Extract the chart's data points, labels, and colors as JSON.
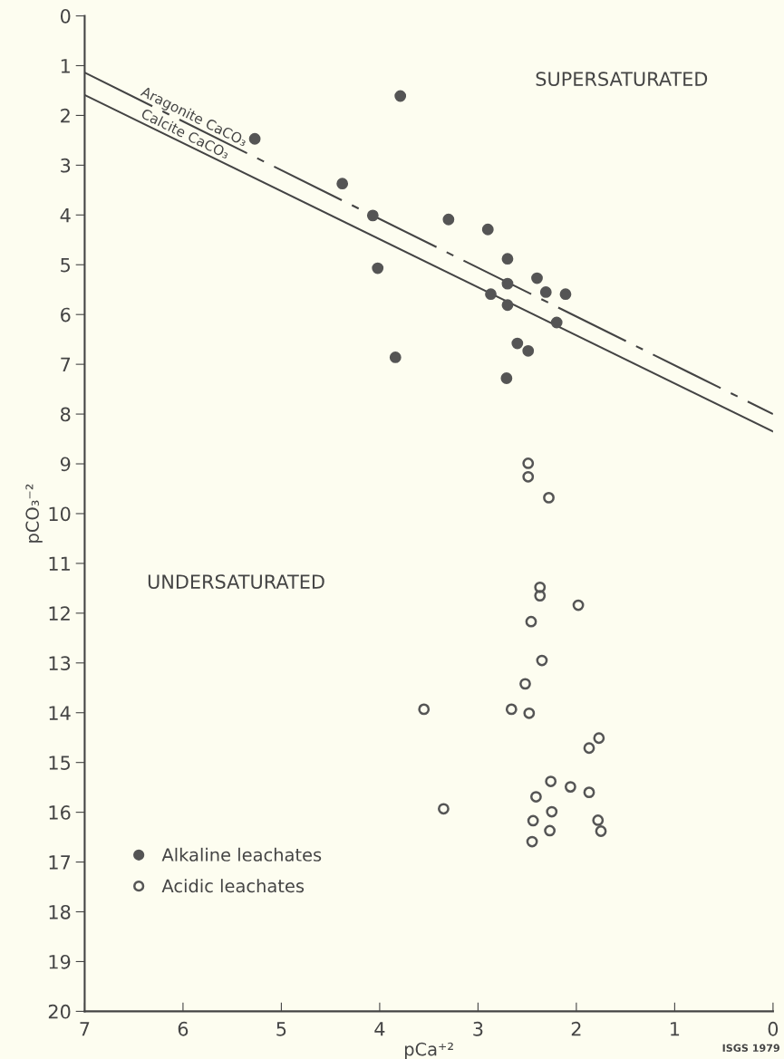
{
  "chart_data": {
    "type": "scatter",
    "xlabel": "pCa⁺²",
    "ylabel": "pCO₃⁻²",
    "xlim": [
      7,
      0
    ],
    "xticks": [
      7,
      6,
      5,
      4,
      3,
      2,
      1,
      0
    ],
    "ylim": [
      20,
      0
    ],
    "yticks": [
      0,
      1,
      2,
      3,
      4,
      5,
      6,
      7,
      8,
      9,
      10,
      11,
      12,
      13,
      14,
      15,
      16,
      17,
      18,
      19,
      20
    ],
    "grid": false,
    "legend": "bottom left",
    "annotations": [
      "SUPERSATURATED",
      "UNDERSATURATED",
      "ISGS 1979"
    ],
    "series": [
      {
        "type": "line",
        "name": "Aragonite CaCO₃",
        "color": "#444444",
        "line_style": "dashed",
        "x": [
          7,
          0
        ],
        "values": [
          1.14,
          8.0
        ]
      },
      {
        "type": "line",
        "name": "Calcite CaCO₃",
        "color": "#444444",
        "line_style": "solid",
        "x": [
          7,
          0
        ],
        "values": [
          1.59,
          8.35
        ]
      },
      {
        "name": "Alkaline leachates",
        "color": "#555555",
        "marker": "circle",
        "x": [
          3.79,
          5.27,
          4.38,
          4.07,
          3.3,
          4.02,
          2.9,
          2.7,
          2.4,
          2.7,
          2.31,
          2.11,
          2.87,
          2.7,
          2.2,
          2.6,
          2.49,
          2.71,
          3.84
        ],
        "values": [
          1.61,
          2.47,
          3.37,
          4.01,
          4.09,
          5.07,
          4.29,
          4.88,
          5.27,
          5.38,
          5.55,
          5.59,
          5.59,
          5.81,
          6.16,
          6.58,
          6.73,
          7.28,
          6.86
        ]
      },
      {
        "name": "Acidic leachates",
        "color": "#555555",
        "marker": "circle",
        "x": [
          2.49,
          2.49,
          2.28,
          2.37,
          2.37,
          1.98,
          2.46,
          2.35,
          2.52,
          3.55,
          2.66,
          2.48,
          1.77,
          1.87,
          2.26,
          2.06,
          1.87,
          2.41,
          3.35,
          2.25,
          2.44,
          1.78,
          2.27,
          1.75,
          2.45
        ],
        "values": [
          8.99,
          9.26,
          9.68,
          11.48,
          11.65,
          11.84,
          12.17,
          12.95,
          13.42,
          13.93,
          13.93,
          14.01,
          14.51,
          14.71,
          15.38,
          15.49,
          15.6,
          15.69,
          15.93,
          15.99,
          16.17,
          16.16,
          16.37,
          16.38,
          16.59
        ]
      }
    ]
  }
}
